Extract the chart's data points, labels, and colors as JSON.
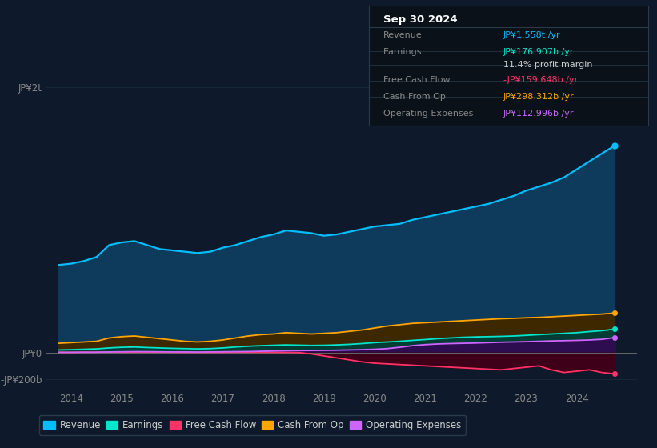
{
  "bg_color": "#0e1a2b",
  "title": "Sep 30 2024",
  "info_box_rows": [
    {
      "label": "Revenue",
      "value": "JP¥1.558t /yr",
      "value_color": "#00bfff"
    },
    {
      "label": "Earnings",
      "value": "JP¥176.907b /yr",
      "value_color": "#00e5cc"
    },
    {
      "label": "",
      "value": "11.4% profit margin",
      "value_color": "#cccccc"
    },
    {
      "label": "Free Cash Flow",
      "value": "-JP¥159.648b /yr",
      "value_color": "#ff3366"
    },
    {
      "label": "Cash From Op",
      "value": "JP¥298.312b /yr",
      "value_color": "#ffa500"
    },
    {
      "label": "Operating Expenses",
      "value": "JP¥112.996b /yr",
      "value_color": "#cc66ff"
    }
  ],
  "ytick_labels": [
    "JP¥2t",
    "JP¥0",
    "-JP¥200b"
  ],
  "ytick_vals": [
    2000,
    0,
    -200
  ],
  "ylim": [
    -280,
    2150
  ],
  "xlim_start": 2013.5,
  "xlim_end": 2025.2,
  "xtick_years": [
    2014,
    2015,
    2016,
    2017,
    2018,
    2019,
    2020,
    2021,
    2022,
    2023,
    2024
  ],
  "revenue": [
    660,
    670,
    690,
    720,
    810,
    830,
    840,
    810,
    780,
    770,
    760,
    750,
    760,
    790,
    810,
    840,
    870,
    890,
    920,
    910,
    900,
    880,
    890,
    910,
    930,
    950,
    960,
    970,
    1000,
    1020,
    1040,
    1060,
    1080,
    1100,
    1120,
    1150,
    1180,
    1220,
    1250,
    1280,
    1320,
    1380,
    1440,
    1500,
    1558
  ],
  "earnings": [
    20,
    22,
    25,
    28,
    35,
    40,
    42,
    38,
    35,
    32,
    30,
    28,
    30,
    35,
    42,
    48,
    52,
    55,
    58,
    56,
    54,
    55,
    58,
    62,
    68,
    75,
    80,
    85,
    92,
    98,
    105,
    110,
    115,
    118,
    120,
    122,
    125,
    130,
    135,
    140,
    145,
    150,
    158,
    165,
    177
  ],
  "free_cash_flow": [
    2,
    2,
    3,
    3,
    4,
    4,
    4,
    4,
    3,
    3,
    2,
    2,
    2,
    2,
    3,
    3,
    3,
    2,
    1,
    0,
    -10,
    -25,
    -40,
    -55,
    -70,
    -80,
    -85,
    -90,
    -95,
    -100,
    -105,
    -110,
    -115,
    -120,
    -125,
    -130,
    -120,
    -110,
    -100,
    -130,
    -150,
    -140,
    -130,
    -150,
    -160
  ],
  "cash_from_op": [
    70,
    75,
    80,
    85,
    110,
    120,
    125,
    115,
    105,
    95,
    85,
    80,
    85,
    95,
    110,
    125,
    135,
    140,
    150,
    145,
    140,
    145,
    150,
    160,
    170,
    185,
    200,
    210,
    220,
    225,
    230,
    235,
    240,
    245,
    250,
    255,
    258,
    262,
    265,
    270,
    275,
    280,
    285,
    290,
    298
  ],
  "operating_expenses": [
    2,
    2,
    3,
    3,
    5,
    6,
    7,
    7,
    6,
    5,
    5,
    4,
    5,
    6,
    7,
    8,
    10,
    12,
    14,
    15,
    16,
    17,
    18,
    20,
    22,
    25,
    30,
    40,
    52,
    60,
    65,
    68,
    70,
    72,
    75,
    78,
    80,
    82,
    85,
    88,
    90,
    92,
    95,
    100,
    113
  ],
  "colors": {
    "revenue": "#00bfff",
    "revenue_fill": "#0e3a5c",
    "earnings": "#00e5cc",
    "earnings_fill": "#003d35",
    "free_cash_flow": "#ff3366",
    "free_cash_flow_fill": "#3d0018",
    "cash_from_op": "#ffa500",
    "cash_from_op_fill": "#3d2800",
    "operating_expenses": "#cc66ff",
    "opex_fill": "#2d0d50"
  },
  "legend_items": [
    {
      "label": "Revenue",
      "color": "#00bfff"
    },
    {
      "label": "Earnings",
      "color": "#00e5cc"
    },
    {
      "label": "Free Cash Flow",
      "color": "#ff3366"
    },
    {
      "label": "Cash From Op",
      "color": "#ffa500"
    },
    {
      "label": "Operating Expenses",
      "color": "#cc66ff"
    }
  ],
  "text_color": "#888888",
  "grid_color": "#1a2e40"
}
